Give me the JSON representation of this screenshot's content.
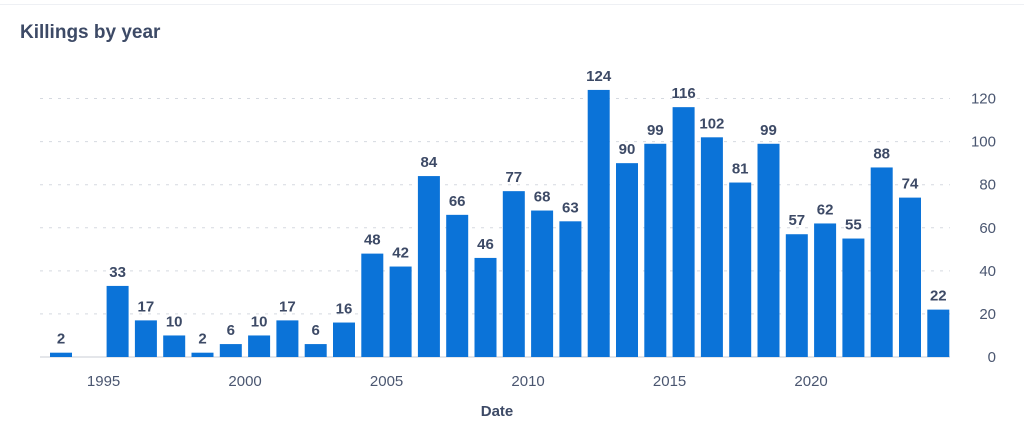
{
  "chart_data": {
    "type": "bar",
    "title": "Killings by year",
    "xlabel": "Date",
    "ylabel": "",
    "x": [
      1993,
      1994,
      1995,
      1996,
      1997,
      1998,
      1999,
      2000,
      2001,
      2002,
      2003,
      2004,
      2005,
      2006,
      2007,
      2008,
      2009,
      2010,
      2011,
      2012,
      2013,
      2014,
      2015,
      2016,
      2017,
      2018,
      2019,
      2020,
      2021,
      2022,
      2023,
      2024
    ],
    "values": [
      2,
      null,
      33,
      17,
      10,
      2,
      6,
      10,
      17,
      6,
      16,
      48,
      42,
      84,
      66,
      46,
      77,
      68,
      63,
      124,
      90,
      99,
      116,
      102,
      81,
      99,
      57,
      62,
      55,
      88,
      74,
      22
    ],
    "ylim": [
      0,
      130
    ],
    "y_ticks": [
      0,
      20,
      40,
      60,
      80,
      100,
      120
    ],
    "x_ticks": [
      "1995",
      "2000",
      "2005",
      "2010",
      "2015",
      "2020"
    ],
    "y_axis_side": "right",
    "grid": "horizontal-dashed",
    "bar_color": "#0b73d8",
    "data_labels": true
  }
}
